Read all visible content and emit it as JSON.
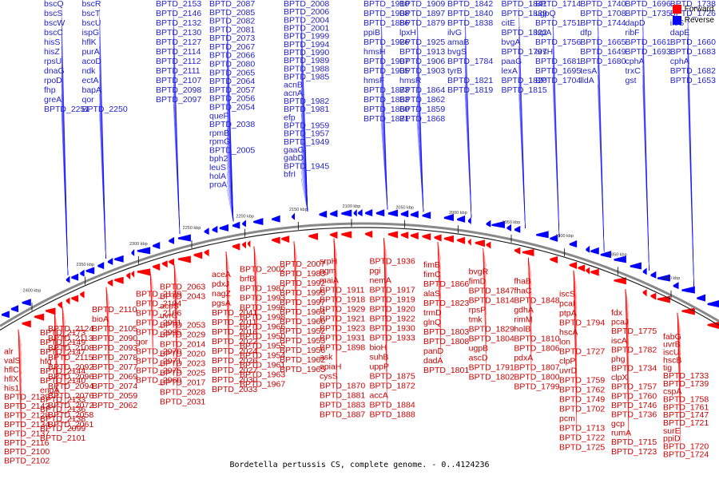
{
  "caption": "Bordetella pertussis CS, complete genome. - 0..4124236",
  "legend": {
    "forward": "Forward",
    "reverse": "Reverse"
  },
  "colors": {
    "forward": "#ff0000",
    "reverse": "#0000ff",
    "forward_text": "#cc0000",
    "reverse_text": "#1f1fcc",
    "backbone": "#888888"
  },
  "kbp_marks": [
    "2400 kbp",
    "2350 kbp",
    "2300 kbp",
    "2250 kbp",
    "2200 kbp",
    "2150 kbp",
    "2100 kbp",
    "2050 kbp",
    "2000 kbp",
    "1950 kbp",
    "1900 kbp",
    "1850 kbp",
    "1800 kbp"
  ],
  "reverse_labels": [
    [
      "bscQ",
      "bscR",
      "bscS",
      "bscT",
      "bscW",
      "bscU",
      "bscC",
      "ispG",
      "hisS",
      "hflK",
      "hisZ",
      "purA",
      "rpsU",
      "acoD",
      "dnaG",
      "ndk",
      "rpoD",
      "ectA",
      "fhp",
      "bapA",
      "greA",
      "qor",
      "BPTD_2251",
      "BPTD_2250"
    ],
    [
      "BPTD_2153",
      "BPTD_2146",
      "BPTD_2132",
      "BPTD_2130",
      "BPTD_2127",
      "BPTD_2114",
      "BPTD_2112",
      "BPTD_2111",
      "BPTD_2107",
      "BPTD_2098",
      "BPTD_2097"
    ],
    [
      "BPTD_2087",
      "BPTD_2085",
      "BPTD_2082",
      "BPTD_2081",
      "BPTD_2073",
      "BPTD_2067",
      "BPTD_2066",
      "BPTD_2080",
      "BPTD_2065",
      "BPTD_2064",
      "BPTD_2057",
      "BPTD_2056",
      "BPTD_2054",
      "queF",
      "BPTD_2038",
      "rpmB",
      "rpmG",
      "BPTD_2005",
      "bph2",
      "leuS",
      "holA",
      "proA"
    ],
    [
      "BPTD_2008",
      "BPTD_2006",
      "BPTD_2004",
      "BPTD_2001",
      "BPTD_1999",
      "BPTD_1994",
      "BPTD_1990",
      "BPTD_1989",
      "BPTD_1988",
      "BPTD_1985",
      "acnB",
      "acnA",
      "BPTD_1982",
      "BPTD_1981",
      "efp",
      "BPTD_1959",
      "BPTD_1957",
      "BPTD_1949",
      "gaaG",
      "gabD",
      "BPTD_1945",
      "bfrI"
    ],
    [
      "BPTD_1910",
      "BPTD_1909",
      "BPTD_1908",
      "BPTD_1897",
      "BPTD_1886",
      "BPTD_1879",
      "ppiB",
      "lpxH",
      "BPTD_1926",
      "BPTD_1925",
      "hmsH",
      "BPTD_1913",
      "BPTD_1907",
      "BPTD_1906",
      "BPTD_1905",
      "BPTD_1903",
      "hmsF",
      "hmsR",
      "BPTD_1873",
      "BPTD_1864",
      "BPTD_1863",
      "BPTD_1862",
      "BPTD_1860",
      "BPTD_1859",
      "BPTD_1871",
      "BPTD_1868"
    ],
    [
      "BPTD_1842",
      "BPTD_1841",
      "BPTD_1840",
      "BPTD_1839",
      "BPTD_1838",
      "citE",
      "ilvG",
      "BPTD_1822",
      "amaB",
      "bvgA",
      "bvgS",
      "BPTD_1797",
      "BPTD_1784",
      "paaG",
      "tyrB",
      "lexA",
      "BPTD_1821",
      "BPTD_1820",
      "BPTD_1819",
      "BPTD_1815"
    ],
    [
      "BPTD_1714",
      "BPTD_1740",
      "BPTD_1696",
      "BPTD_1738",
      "ugpQ",
      "BPTD_1708",
      "BPTD_1735",
      "BPTD_1726",
      "BPTD_1751",
      "BPTD_1744",
      "dapD",
      "ileS",
      "lspA",
      "dfp",
      "ribF",
      "dapE",
      "BPTD_1756",
      "BPTD_1665",
      "BPTD_1661",
      "BPTD_1660",
      "arsH",
      "BPTD_1649",
      "BPTD_1693",
      "BPTD_1683",
      "BPTD_1681",
      "BPTD_1680",
      "cphA",
      "cphA",
      "BPTD_1695",
      "tesA",
      "trxC",
      "BPTD_1682",
      "BPTD_1704",
      "lldA",
      "gst",
      "BPTD_1653"
    ]
  ],
  "forward_labels": [
    [
      "alr",
      "BPTD_2173",
      "valS",
      "BPTD_2149",
      "hflC",
      "BPTD_2147",
      "hflX",
      "hfq",
      "his1",
      "BPTD_2144",
      "BPTD_2139",
      "BPTD_2140",
      "BPTD_2143",
      "engA",
      "BPTD_2128",
      "BPTD_2133",
      "BPTD_2134",
      "BPTD_2136",
      "BPTD_2137",
      "BPTD_2138",
      "BPTD_2116",
      "BPTD_2099",
      "BPTD_2100",
      "BPTD_2101",
      "BPTD_2102"
    ],
    [
      "BPTD_2124",
      "BPTD_2110",
      "BPTD_2129",
      "BPTD_2113",
      "bioA",
      "BPTD_2104",
      "BPTD_2108",
      "BPTD_2105",
      "BPTD_2106",
      "BPTD_2115",
      "BPTD_2090",
      "BPTD_2091",
      "BPTD_2092",
      "BPTD_2093",
      "BPTD_2095",
      "BPTD_2096",
      "BPTD_2078",
      "gor",
      "BPTD_2094",
      "BPTD_2077",
      "BPTD_2070",
      "BPTD_2076",
      "BPTD_2069",
      "BPTD_2071",
      "BPTD_2072",
      "BPTD_2074",
      "BPTD_2075",
      "BPTD_2058",
      "BPTD_2059",
      "BPTD_2060",
      "BPTD_2061",
      "BPTD_2062"
    ],
    [
      "BPTD_2063",
      "aceA",
      "BPTD_2043",
      "pdxJ",
      "acpS",
      "nagZ",
      "uvrC",
      "pgsA",
      "BPTD_2053",
      "BPTD_2041",
      "BPTD_2029",
      "BPTD_2011",
      "BPTD_2014",
      "BPTD_2016",
      "BPTD_2020",
      "BPTD_2022",
      "BPTD_2023",
      "BPTD_2024",
      "BPTD_2025",
      "BPTD_2026",
      "BPTD_2017",
      "BPTD_2027",
      "BPTD_2028",
      "BPTD_2030",
      "BPTD_2031",
      "BPTD_2033"
    ],
    [
      "BPTD_2002",
      "BPTD_2007",
      "brfB",
      "BPTD_1983",
      "BPTD_1987",
      "BPTD_1992",
      "BPTD_1993",
      "BPTD_1995",
      "BPTD_1996",
      "BPTD_1997",
      "BPTD_1998",
      "BPTD_1964",
      "BPTD_1966",
      "BPTD_1960",
      "BPTD_1950",
      "BPTD_1952",
      "BPTD_1955",
      "BPTD_1953",
      "BPTD_1954",
      "BPTD_1956",
      "BPTD_1961",
      "BPTD_1962",
      "BPTD_1963",
      "BPTD_1965",
      "BPTD_1967"
    ],
    [
      "srpH",
      "BPTD_1936",
      "pgm",
      "pgi",
      "maiA",
      "nemA",
      "BPTD_1911",
      "BPTD_1917",
      "BPTD_1918",
      "BPTD_1919",
      "BPTD_1929",
      "BPTD_1920",
      "BPTD_1921",
      "BPTD_1922",
      "BPTD_1923",
      "BPTD_1930",
      "BPTD_1931",
      "BPTD_1933",
      "BPTD_1898",
      "bioH",
      "ask",
      "suhB",
      "opiaH",
      "uppP",
      "cysS",
      "BPTD_1875",
      "BPTD_1870",
      "BPTD_1872",
      "BPTD_1881",
      "accA",
      "BPTD_1883",
      "BPTD_1884",
      "BPTD_1887",
      "BPTD_1888"
    ],
    [
      "fimB",
      "bvgR",
      "fhaB",
      "fimC",
      "fimD",
      "fhaC",
      "BPTD_1866",
      "BPTD_1847",
      "BPTD_1848",
      "alaS",
      "BPTD_1814",
      "gdhA",
      "BPTD_1823",
      "rpsP",
      "rimM",
      "trmD",
      "tmk",
      "holB",
      "glnQ",
      "BPTD_1829",
      "BPTD_1810",
      "BPTD_1803",
      "BPTD_1804",
      "BPTD_1806",
      "BPTD_1808",
      "ugpB",
      "pdxA",
      "panD",
      "ascD",
      "BPTD_1807",
      "dadA",
      "BPTD_1791",
      "BPTD_1800",
      "BPTD_1801",
      "BPTD_1802",
      "BPTD_1799"
    ],
    [
      "iscS",
      "fdx",
      "fabG",
      "pcaI",
      "pcaJ",
      "uvrB",
      "ptpA",
      "BPTD_1775",
      "iscU",
      "BPTD_1794",
      "iscA",
      "hscB",
      "hscA",
      "BPTD_1782",
      "tig",
      "lon",
      "phg",
      "BPTD_1733",
      "BPTD_1727",
      "BPTD_1734",
      "BPTD_1739",
      "clpP",
      "clpX",
      "cspA",
      "uvrD",
      "BPTD_1757",
      "BPTD_1758",
      "BPTD_1759",
      "BPTD_1760",
      "BPTD_1761",
      "BPTD_1762",
      "BPTD_1746",
      "BPTD_1747",
      "BPTD_1749",
      "BPTD_1736",
      "BPTD_1721",
      "BPTD_1702",
      "gcp",
      "surE",
      "pcm",
      "rumA",
      "ppiD",
      "BPTD_1713",
      "BPTD_1715",
      "BPTD_1720",
      "BPTD_1722",
      "BPTD_1723",
      "BPTD_1724",
      "BPTD_1725"
    ]
  ]
}
